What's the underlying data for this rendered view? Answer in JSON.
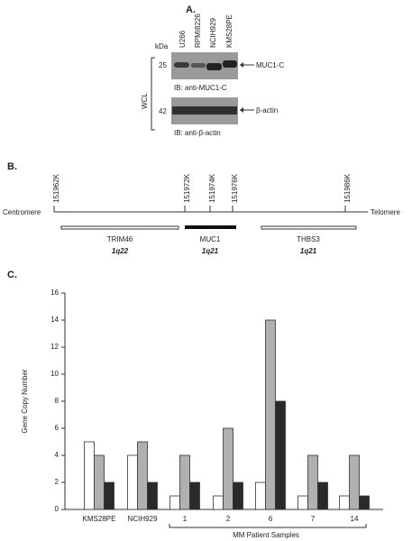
{
  "panel_a": {
    "label": "A.",
    "lanes": [
      "U266",
      "RPMI8226",
      "NCIH929",
      "KMS28PE"
    ],
    "unit": "kDa",
    "markers": [
      25,
      42
    ],
    "bands": [
      "MUC1-C",
      "β-actin"
    ],
    "blots": [
      "IB: anti-MUC1-C",
      "IB: anti-β-actin"
    ],
    "sample": "WCL"
  },
  "panel_b": {
    "label": "B.",
    "positions": [
      "151962K",
      "151972K",
      "151974K",
      "151976K",
      "151986K"
    ],
    "left_end": "Centromere",
    "right_end": "Telomere",
    "genes": [
      {
        "name": "TRIM46",
        "locus": "1q22"
      },
      {
        "name": "MUC1",
        "locus": "1q21"
      },
      {
        "name": "THBS3",
        "locus": "1q21"
      }
    ]
  },
  "chart_data": {
    "type": "bar",
    "label": "C.",
    "y_label": "Gene Copy Number",
    "categories": [
      "KMS28PE",
      "NCIH929",
      "1",
      "2",
      "6",
      "7",
      "14"
    ],
    "group_label": "MM Patient Samples",
    "series": [
      {
        "color": "#ffffff",
        "values": [
          5,
          4,
          1,
          1,
          2,
          1,
          1
        ]
      },
      {
        "color": "#b0b0b0",
        "values": [
          4,
          5,
          4,
          6,
          14,
          4,
          4
        ]
      },
      {
        "color": "#2a2a2a",
        "values": [
          2,
          2,
          2,
          2,
          8,
          2,
          1
        ]
      }
    ],
    "ylim": [
      0,
      16
    ],
    "yticks": [
      0,
      2,
      4,
      6,
      8,
      10,
      12,
      14,
      16
    ]
  }
}
